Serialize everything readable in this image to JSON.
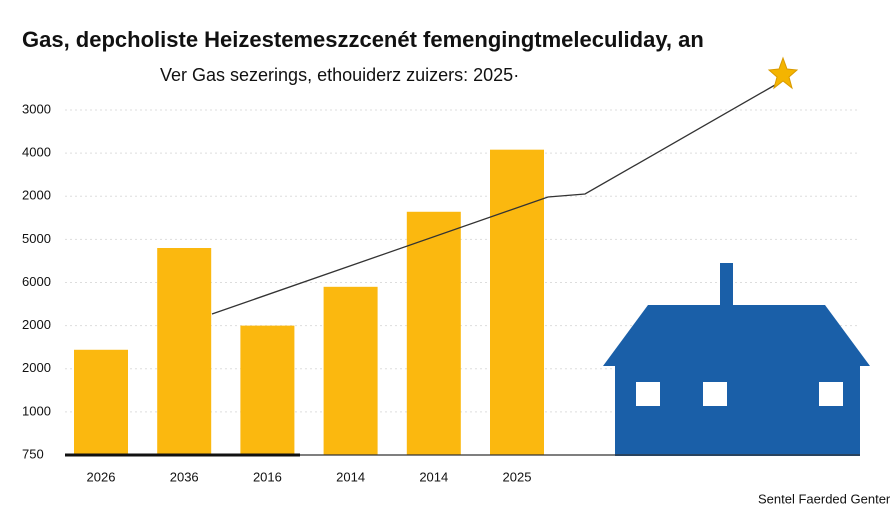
{
  "chart_data": {
    "type": "bar",
    "title": "Gas, depcholiste Heizestemeszzcenét femengingtmeleculiday, an",
    "subtitle": "Ver Gas sezerings, ethouiderz zuizers: 2025·",
    "footer": "Sentel Faerded Genter",
    "categories": [
      "2026",
      "2036",
      "2016",
      "2014",
      "2014",
      "2025"
    ],
    "values": [
      2.44,
      4.8,
      3.0,
      3.9,
      5.64,
      7.08
    ],
    "color": "#fbb80f",
    "ylim": [
      0,
      8
    ],
    "yticks": [
      {
        "value": 0,
        "label": "750"
      },
      {
        "value": 1,
        "label": "1000"
      },
      {
        "value": 2,
        "label": "2000"
      },
      {
        "value": 3,
        "label": "2000"
      },
      {
        "value": 4,
        "label": "6000"
      },
      {
        "value": 5,
        "label": "5000"
      },
      {
        "value": 6,
        "label": "2000"
      },
      {
        "value": 7,
        "label": "4000"
      },
      {
        "value": 8,
        "label": "3000"
      }
    ],
    "grid": true
  }
}
